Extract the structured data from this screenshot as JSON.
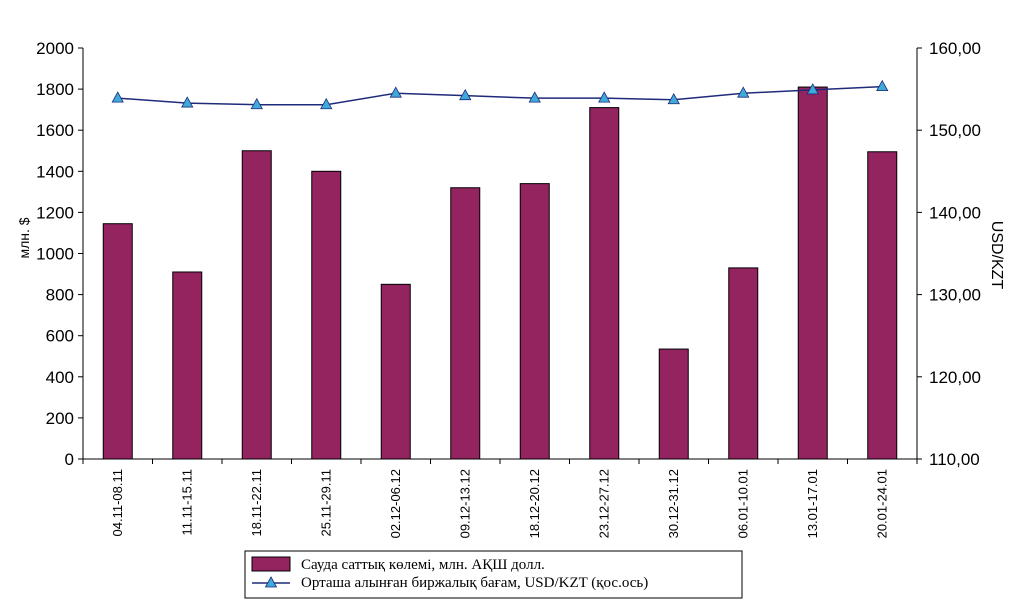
{
  "chart_data": {
    "type": "bar",
    "categories": [
      "04.11-08.11",
      "11.11-15.11",
      "18.11-22.11",
      "25.11-29.11",
      "02.12-06.12",
      "09.12-13.12",
      "18.12-20.12",
      "23.12-27.12",
      "30.12-31.12",
      "06.01-10.01",
      "13.01-17.01",
      "20.01-24.01"
    ],
    "series": [
      {
        "name": "Сауда саттық көлемі, млн. АҚШ долл.",
        "type": "bar",
        "axis": "left",
        "color": "#93245f",
        "values": [
          1145,
          910,
          1500,
          1400,
          850,
          1320,
          1340,
          1710,
          535,
          930,
          1810,
          1495
        ]
      },
      {
        "name": "Орташа алынған  биржалық бағам, USD/KZT (қос.ось)",
        "type": "line",
        "axis": "right",
        "color": "#1f2a7a",
        "marker_color": "#3fa9d9",
        "values": [
          153.9,
          153.3,
          153.1,
          153.1,
          154.5,
          154.2,
          153.9,
          153.9,
          153.7,
          154.5,
          154.9,
          155.3
        ]
      }
    ],
    "y_left": {
      "label": "млн. $",
      "ylim": [
        0,
        2000
      ],
      "ticks": [
        "0",
        "200",
        "400",
        "600",
        "800",
        "1000",
        "1200",
        "1400",
        "1600",
        "1800",
        "2000"
      ]
    },
    "y_right": {
      "label": "USD/KZT",
      "ylim": [
        110,
        160
      ],
      "ticks": [
        "110,00",
        "120,00",
        "130,00",
        "140,00",
        "150,00",
        "160,00"
      ]
    },
    "grid": false,
    "legend_position": "bottom"
  }
}
